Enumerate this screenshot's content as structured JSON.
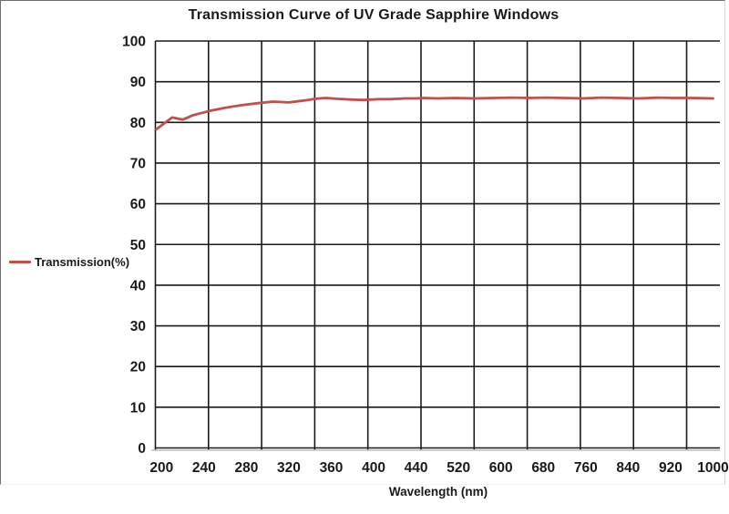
{
  "title": "Transmission Curve of UV Grade Sapphire Windows",
  "legend": {
    "label": "Transmission(%)"
  },
  "colors": {
    "series_red": "#C0504D",
    "gridline": "#1a1a1a",
    "axis_baseline_gray": "#bfbfbf",
    "text": "#1a1a1a"
  },
  "chart_data": {
    "type": "line",
    "title": "Transmission Curve of UV Grade Sapphire Windows",
    "xlabel": "Wavelength (nm)",
    "ylabel": "",
    "ylim": [
      0,
      100
    ],
    "y_ticks": [
      0,
      10,
      20,
      30,
      40,
      50,
      60,
      70,
      80,
      90,
      100
    ],
    "x_tick_labels": [
      "200",
      "240",
      "280",
      "320",
      "360",
      "400",
      "440",
      "520",
      "600",
      "680",
      "760",
      "840",
      "920",
      "1000"
    ],
    "x_tick_values": [
      200,
      240,
      280,
      320,
      360,
      400,
      440,
      520,
      600,
      680,
      760,
      840,
      920,
      1000
    ],
    "layout": {
      "grid": true,
      "vertical_gridline_count": 11,
      "horizontal_gridline_count": 11,
      "legend_position": "left-middle",
      "plot_border": "open-right"
    },
    "series": [
      {
        "name": "Transmission(%)",
        "color": "#C0504D",
        "points": [
          [
            195,
            78.3
          ],
          [
            210,
            81.2
          ],
          [
            220,
            80.7
          ],
          [
            230,
            81.8
          ],
          [
            245,
            82.8
          ],
          [
            260,
            83.6
          ],
          [
            275,
            84.2
          ],
          [
            290,
            84.7
          ],
          [
            305,
            85.1
          ],
          [
            320,
            84.9
          ],
          [
            335,
            85.4
          ],
          [
            345,
            85.8
          ],
          [
            355,
            86.0
          ],
          [
            365,
            85.8
          ],
          [
            380,
            85.6
          ],
          [
            390,
            85.5
          ],
          [
            405,
            85.7
          ],
          [
            415,
            85.7
          ],
          [
            430,
            85.9
          ],
          [
            440,
            85.9
          ],
          [
            455,
            86.0
          ],
          [
            480,
            85.9
          ],
          [
            515,
            86.0
          ],
          [
            550,
            85.9
          ],
          [
            585,
            86.0
          ],
          [
            620,
            86.1
          ],
          [
            650,
            86.0
          ],
          [
            685,
            86.1
          ],
          [
            720,
            86.0
          ],
          [
            755,
            85.9
          ],
          [
            790,
            86.1
          ],
          [
            825,
            86.0
          ],
          [
            860,
            85.9
          ],
          [
            895,
            86.1
          ],
          [
            925,
            86.0
          ],
          [
            960,
            86.0
          ],
          [
            1000,
            85.9
          ]
        ]
      }
    ]
  }
}
